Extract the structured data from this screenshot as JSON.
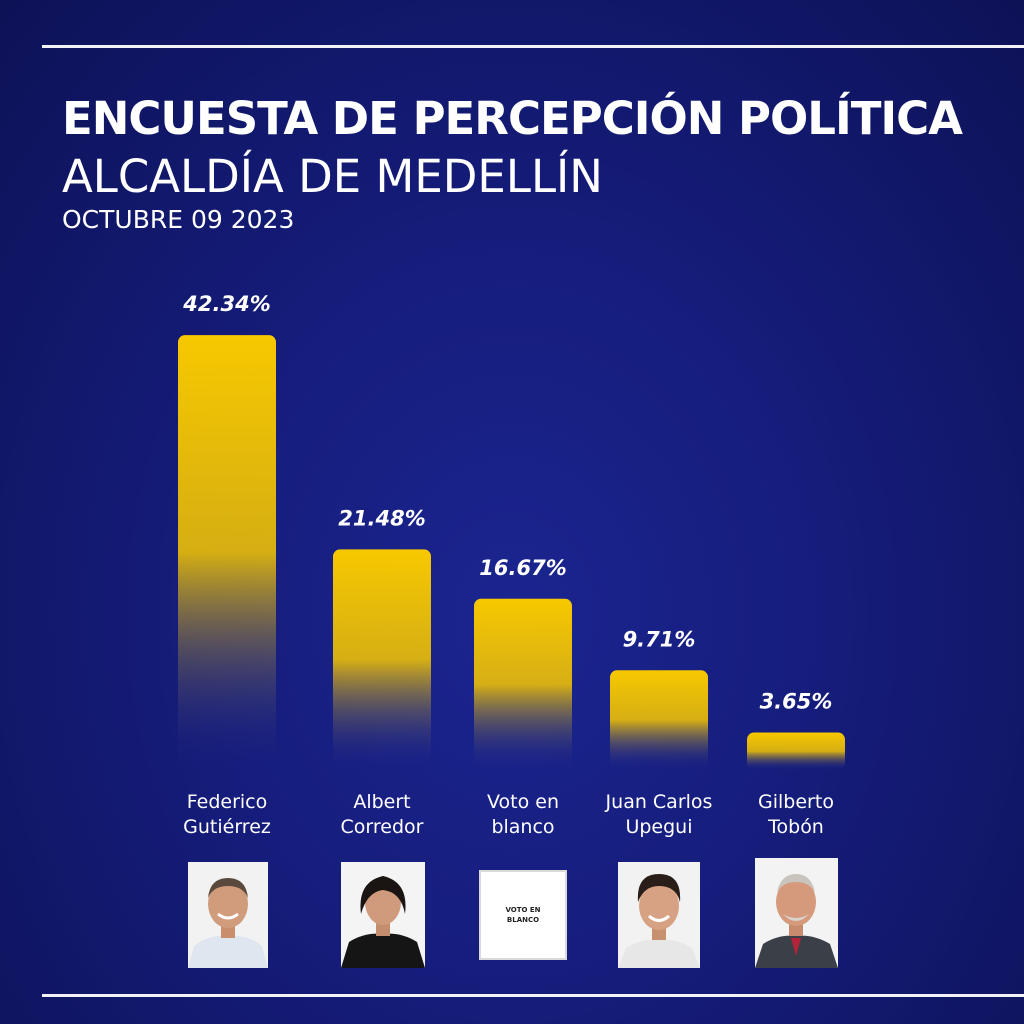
{
  "header": {
    "title": "ENCUESTA DE PERCEPCIÓN POLÍTICA",
    "subtitle": "ALCALDÍA DE MEDELLÍN",
    "date": "OCTUBRE 09 2023"
  },
  "colors": {
    "bar_top": "#f7c800",
    "bar_bottom": "#1b2590",
    "background": "#151c7a"
  },
  "chart_data": {
    "type": "bar",
    "categories": [
      [
        "Federico",
        "Gutiérrez"
      ],
      [
        "Albert",
        "Corredor"
      ],
      [
        "Voto en",
        "blanco"
      ],
      [
        "Juan Carlos",
        "Upegui"
      ],
      [
        "Gilberto",
        "Tobón"
      ]
    ],
    "values": [
      42.34,
      21.48,
      16.67,
      9.71,
      3.65
    ],
    "value_labels": [
      "42.34%",
      "21.48%",
      "16.67%",
      "9.71%",
      "3.65%"
    ],
    "unit": "%",
    "grid": false,
    "legend": "none"
  },
  "candidate_photos": [
    {
      "icon": "candidate-photo-icon"
    },
    {
      "icon": "candidate-photo-icon"
    },
    {
      "icon": "blank-vote-card",
      "text": [
        "VOTO EN",
        "BLANCO"
      ]
    },
    {
      "icon": "candidate-photo-icon"
    },
    {
      "icon": "candidate-photo-icon"
    }
  ]
}
